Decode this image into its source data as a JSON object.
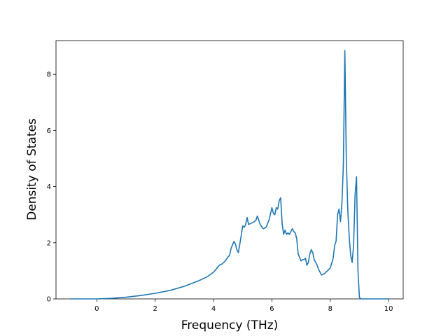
{
  "chart_data": {
    "type": "line",
    "title": "",
    "xlabel": "Frequency (THz)",
    "ylabel": "Density of States",
    "xlim": [
      -1.4,
      10.5
    ],
    "ylim": [
      0,
      9.2
    ],
    "xticks": [
      0,
      2,
      4,
      6,
      8,
      10
    ],
    "yticks": [
      0,
      2,
      4,
      6,
      8
    ],
    "grid": false,
    "line_color": "#1f77b4",
    "series": [
      {
        "x": [
          -0.9,
          -0.5,
          0,
          0.5,
          1,
          1.5,
          2,
          2.5,
          3,
          3.5,
          3.8,
          4.0,
          4.2,
          4.3,
          4.4,
          4.5,
          4.55,
          4.6,
          4.7,
          4.75,
          4.8,
          4.85,
          4.9,
          5.0,
          5.05,
          5.1,
          5.15,
          5.2,
          5.3,
          5.4,
          5.45,
          5.5,
          5.6,
          5.7,
          5.8,
          5.9,
          6.0,
          6.05,
          6.1,
          6.15,
          6.2,
          6.25,
          6.3,
          6.35,
          6.4,
          6.45,
          6.5,
          6.55,
          6.6,
          6.7,
          6.75,
          6.8,
          6.85,
          6.9,
          7.0,
          7.05,
          7.1,
          7.15,
          7.2,
          7.25,
          7.3,
          7.35,
          7.4,
          7.45,
          7.5,
          7.55,
          7.6,
          7.7,
          7.8,
          7.9,
          8.0,
          8.1,
          8.15,
          8.2,
          8.25,
          8.3,
          8.35,
          8.4,
          8.45,
          8.5,
          8.55,
          8.6,
          8.65,
          8.7,
          8.75,
          8.8,
          8.85,
          8.9,
          8.95,
          9.0,
          9.05,
          9.1,
          9.5,
          10.0
        ],
        "values": [
          0,
          0,
          0,
          0.02,
          0.06,
          0.12,
          0.2,
          0.3,
          0.45,
          0.65,
          0.8,
          0.95,
          1.2,
          1.25,
          1.35,
          1.5,
          1.55,
          1.8,
          2.05,
          1.95,
          1.75,
          1.65,
          1.95,
          2.6,
          2.55,
          2.65,
          2.9,
          2.65,
          2.7,
          2.75,
          2.8,
          2.95,
          2.65,
          2.5,
          2.55,
          2.8,
          3.25,
          3.05,
          3.0,
          3.25,
          3.2,
          3.5,
          3.6,
          2.7,
          2.3,
          2.45,
          2.3,
          2.35,
          2.3,
          2.5,
          2.4,
          2.35,
          2.15,
          1.6,
          1.35,
          1.4,
          1.4,
          1.45,
          1.2,
          1.3,
          1.6,
          1.75,
          1.65,
          1.4,
          1.3,
          1.2,
          1.05,
          0.85,
          0.9,
          1.0,
          1.1,
          1.45,
          1.9,
          2.05,
          3.0,
          3.2,
          2.75,
          3.4,
          4.8,
          8.85,
          5.0,
          3.2,
          2.2,
          1.55,
          1.3,
          1.9,
          3.7,
          4.35,
          1.0,
          0.05,
          0,
          0,
          0,
          0
        ]
      }
    ]
  }
}
